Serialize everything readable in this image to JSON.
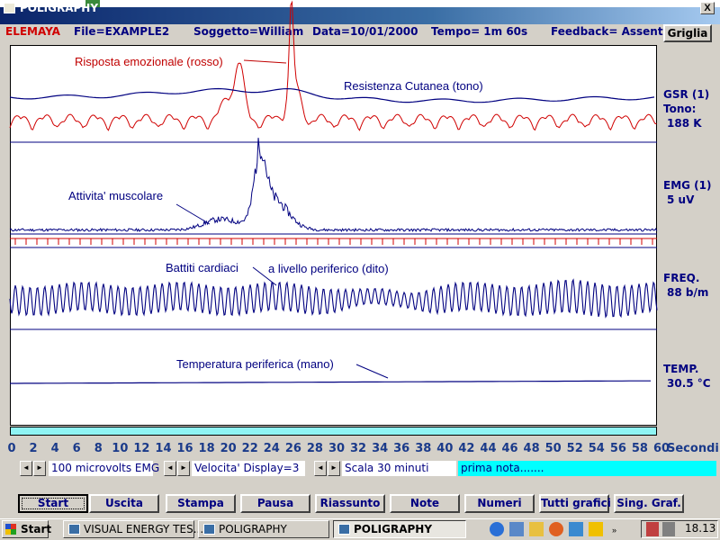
{
  "window": {
    "title": "POLIGRAPHY",
    "close_label": "X"
  },
  "header": {
    "brand": "ELEMAYA",
    "file": "File=EXAMPLE2",
    "subject": "Soggetto=William",
    "date": "Data=10/01/2000",
    "time": "Tempo= 1m  60s",
    "feedback": "Feedback= Assente",
    "grid_button": "Griglia"
  },
  "channels": [
    {
      "name": "GSR (1)",
      "line2": "Tono:",
      "line3": "188 K"
    },
    {
      "name": "EMG (1)",
      "line2": "5 uV"
    },
    {
      "name": "FREQ.",
      "line2": "88 b/m"
    },
    {
      "name": "TEMP.",
      "line2": "30.5 °C"
    }
  ],
  "annotations": {
    "emotional": "Risposta emozionale (rosso)",
    "skin": "Resistenza Cutanea (tono)",
    "muscle": "Attivita' muscolare",
    "heart": "Battiti cardiaci",
    "peripheral": "a livello periferico (dito)",
    "temperature": "Temperatura periferica (mano)"
  },
  "colors": {
    "trace_blue": "#000080",
    "trace_red": "#d00000",
    "strip": "#8ff4f4",
    "note_bg": "#00ffff"
  },
  "chart_data": {
    "type": "line",
    "xlabel": "Secondi",
    "xlim": [
      0,
      60
    ],
    "x_ticks": [
      "0",
      "2",
      "4",
      "6",
      "8",
      "10",
      "12",
      "14",
      "16",
      "18",
      "20",
      "22",
      "24",
      "26",
      "28",
      "30",
      "32",
      "34",
      "36",
      "38",
      "40",
      "42",
      "44",
      "46",
      "48",
      "50",
      "52",
      "54",
      "56",
      "58",
      "60"
    ],
    "series": [
      {
        "name": "Risposta emozionale (rosso)",
        "peaks_at_seconds": [
          21,
          26
        ],
        "color": "#d00000"
      },
      {
        "name": "Resistenza Cutanea (tono)",
        "value": "188 K"
      },
      {
        "name": "Attivita' muscolare",
        "peak_at_seconds": 23,
        "value": "5 uV"
      },
      {
        "name": "Battiti cardiaci",
        "value": "88 b/m"
      },
      {
        "name": "Temperatura periferica (mano)",
        "value": "30.5 °C"
      }
    ]
  },
  "controls": {
    "spin_left": "◄",
    "spin_right": "►",
    "emg_scale": "100 microvolts EMG",
    "display_speed": "Velocita' Display=3",
    "time_scale": "Scala 30 minuti",
    "note": "prima nota......."
  },
  "buttons": [
    "Start",
    "Uscita",
    "Stampa",
    "Pausa",
    "Riassunto",
    "Note",
    "Numeri",
    "Tutti grafici",
    "Sing. Graf."
  ],
  "taskbar": {
    "start": "Start",
    "tasks": [
      "VISUAL ENERGY TES...",
      "POLIGRAPHY",
      "POLIGRAPHY"
    ],
    "clock": "18.13"
  }
}
